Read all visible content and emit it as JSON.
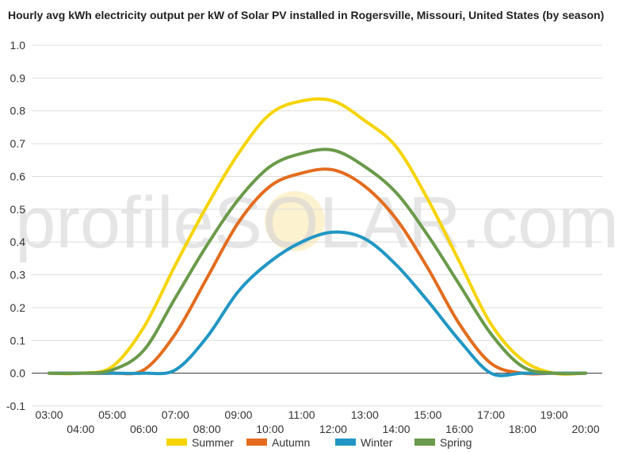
{
  "chart_data": {
    "type": "line",
    "title": "Hourly avg kWh electricity output per kW of Solar PV installed in Rogersville, Missouri, United States (by season)",
    "xlabel": "",
    "ylabel": "",
    "watermark": "profileSOLAR.com",
    "x": [
      "03:00",
      "04:00",
      "05:00",
      "06:00",
      "07:00",
      "08:00",
      "09:00",
      "10:00",
      "11:00",
      "12:00",
      "13:00",
      "14:00",
      "15:00",
      "16:00",
      "17:00",
      "18:00",
      "19:00",
      "20:00"
    ],
    "x_tick_labels": [
      "03:00",
      "04:00",
      "05:00",
      "06:00",
      "07:00",
      "08:00",
      "09:00",
      "10:00",
      "11:00",
      "12:00",
      "13:00",
      "14:00",
      "15:00",
      "16:00",
      "17:00",
      "18:00",
      "19:00",
      "20:00"
    ],
    "ylim": [
      -0.1,
      1.0
    ],
    "y_ticks": [
      "-0.1",
      "0.0",
      "0.1",
      "0.2",
      "0.3",
      "0.4",
      "0.5",
      "0.6",
      "0.7",
      "0.8",
      "0.9",
      "1.0"
    ],
    "grid": true,
    "legend_position": "bottom",
    "series": [
      {
        "name": "Summer",
        "color": "#f5d400",
        "values": [
          0.0,
          0.0,
          0.02,
          0.14,
          0.33,
          0.51,
          0.67,
          0.79,
          0.83,
          0.83,
          0.77,
          0.69,
          0.53,
          0.34,
          0.15,
          0.04,
          0.0,
          0.0
        ]
      },
      {
        "name": "Autumn",
        "color": "#e36c1e",
        "values": [
          0.0,
          0.0,
          0.0,
          0.01,
          0.12,
          0.29,
          0.46,
          0.57,
          0.61,
          0.62,
          0.57,
          0.47,
          0.32,
          0.15,
          0.03,
          0.0,
          0.0,
          0.0
        ]
      },
      {
        "name": "Winter",
        "color": "#2196c4",
        "values": [
          0.0,
          0.0,
          0.0,
          0.0,
          0.01,
          0.11,
          0.25,
          0.34,
          0.4,
          0.43,
          0.41,
          0.33,
          0.22,
          0.1,
          0.0,
          0.0,
          0.0,
          0.0
        ]
      },
      {
        "name": "Spring",
        "color": "#6a9a4a",
        "values": [
          0.0,
          0.0,
          0.01,
          0.07,
          0.23,
          0.39,
          0.53,
          0.63,
          0.67,
          0.68,
          0.63,
          0.55,
          0.42,
          0.27,
          0.12,
          0.02,
          0.0,
          0.0
        ]
      }
    ]
  }
}
